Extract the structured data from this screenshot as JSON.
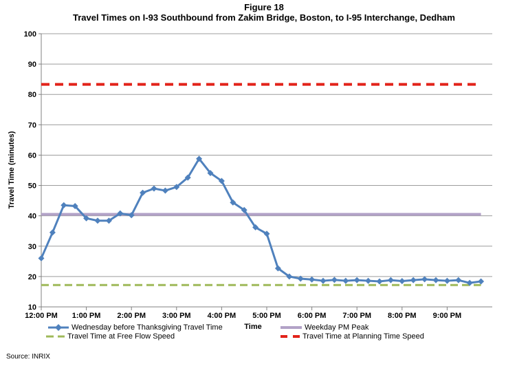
{
  "figure": {
    "title_line1": "Figure 18",
    "title_line2": "Travel Times on I-93 Southbound from Zakim Bridge, Boston, to I-95 Interchange, Dedham",
    "source": "Source: INRIX"
  },
  "chart_data": {
    "type": "line",
    "title": "Travel Times on I-93 Southbound from Zakim Bridge, Boston, to I-95 Interchange, Dedham",
    "xlabel": "Time",
    "ylabel": "Travel Time (minutes)",
    "ylim": [
      10,
      100
    ],
    "ytick_step": 10,
    "x_axis_hours_span": 10,
    "x_tick_labels": [
      "12:00 PM",
      "1:00 PM",
      "2:00 PM",
      "3:00 PM",
      "4:00 PM",
      "5:00 PM",
      "6:00 PM",
      "7:00 PM",
      "8:00 PM",
      "9:00 PM"
    ],
    "grid": true,
    "legend_position": "bottom",
    "colors": {
      "travel_series": "#4f81bd",
      "pm_peak": "#b2a2c7",
      "free_flow": "#9fb959",
      "planning_time": "#e2231a",
      "gridline": "#9c9c9c",
      "axis": "#808080"
    },
    "series": [
      {
        "name": "Wednesday before Thanksgiving Travel Time",
        "type": "line_markers",
        "color": "#4f81bd",
        "interval_minutes": 15,
        "x_times": [
          "12:00 PM",
          "12:15 PM",
          "12:30 PM",
          "12:45 PM",
          "1:00 PM",
          "1:15 PM",
          "1:30 PM",
          "1:45 PM",
          "2:00 PM",
          "2:15 PM",
          "2:30 PM",
          "2:45 PM",
          "3:00 PM",
          "3:15 PM",
          "3:30 PM",
          "3:45 PM",
          "4:00 PM",
          "4:15 PM",
          "4:30 PM",
          "4:45 PM",
          "5:00 PM",
          "5:15 PM",
          "5:30 PM",
          "5:45 PM",
          "6:00 PM",
          "6:15 PM",
          "6:30 PM",
          "6:45 PM",
          "7:00 PM",
          "7:15 PM",
          "7:30 PM",
          "7:45 PM",
          "8:00 PM",
          "8:15 PM",
          "8:30 PM",
          "8:45 PM",
          "9:00 PM",
          "9:15 PM",
          "9:30 PM",
          "9:45 PM"
        ],
        "values": [
          26.0,
          34.5,
          43.5,
          43.2,
          39.2,
          38.4,
          38.4,
          40.8,
          40.2,
          47.6,
          49.0,
          48.3,
          49.5,
          52.6,
          58.8,
          54.1,
          51.5,
          44.4,
          41.9,
          36.2,
          34.1,
          22.7,
          20.0,
          19.3,
          19.0,
          18.6,
          18.9,
          18.6,
          18.8,
          18.6,
          18.4,
          18.8,
          18.5,
          18.8,
          19.1,
          18.8,
          18.6,
          18.8,
          17.9,
          18.4
        ]
      },
      {
        "name": "Weekday PM Peak",
        "type": "hline",
        "style": "solid",
        "color": "#b2a2c7",
        "value": 40.5
      },
      {
        "name": "Travel Time at Free Flow Speed",
        "type": "hline",
        "style": "dashed",
        "color": "#9fb959",
        "value": 17.2
      },
      {
        "name": "Travel Time at Planning Time Speed",
        "type": "hline",
        "style": "dashed",
        "color": "#e2231a",
        "value": 83.3
      }
    ]
  }
}
